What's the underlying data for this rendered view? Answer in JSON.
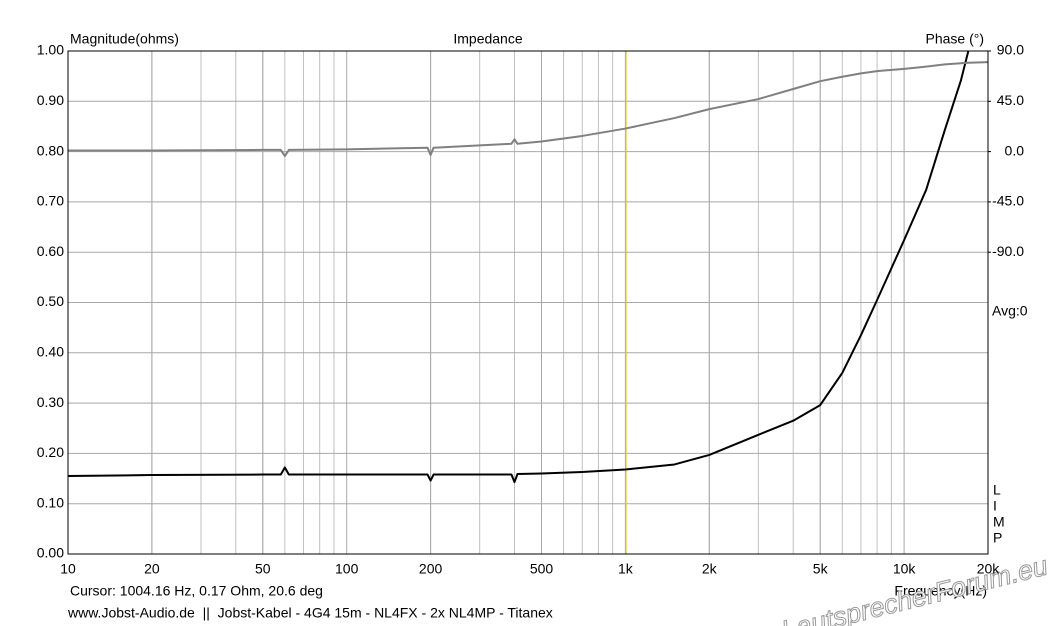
{
  "chart_data": {
    "type": "line",
    "title": "Impedance",
    "ylabel": "Magnitude(ohms)",
    "y2label": "Phase (°)",
    "xlabel": "Frequency(Hz)",
    "log_x": true,
    "grid": true,
    "xlim": [
      10,
      20000
    ],
    "xticks": [
      10,
      20,
      50,
      100,
      200,
      500,
      {
        "value": 1000,
        "label": "1k"
      },
      {
        "value": 2000,
        "label": "2k"
      },
      {
        "value": 5000,
        "label": "5k"
      },
      {
        "value": 10000,
        "label": "10k"
      },
      {
        "value": 20000,
        "label": "20k"
      }
    ],
    "ylim": [
      0,
      1
    ],
    "yticks": [
      {
        "value": 0,
        "label": "0.00"
      },
      {
        "value": 0.1,
        "label": "0.10"
      },
      {
        "value": 0.2,
        "label": "0.20"
      },
      {
        "value": 0.3,
        "label": "0.30"
      },
      {
        "value": 0.4,
        "label": "0.40"
      },
      {
        "value": 0.5,
        "label": "0.50"
      },
      {
        "value": 0.6,
        "label": "0.60"
      },
      {
        "value": 0.7,
        "label": "0.70"
      },
      {
        "value": 0.8,
        "label": "0.80"
      },
      {
        "value": 0.9,
        "label": "0.90"
      },
      {
        "value": 1,
        "label": "1.00"
      }
    ],
    "y2lim": [
      -360,
      90
    ],
    "y2ticks": [
      {
        "value": 90,
        "label": "90.0"
      },
      {
        "value": 45,
        "label": "45.0"
      },
      {
        "value": 0,
        "label": "0.0"
      },
      {
        "value": -45,
        "label": "-45.0"
      },
      {
        "value": -90,
        "label": "-90.0"
      }
    ],
    "x": [
      10,
      20,
      50,
      58,
      60,
      62,
      100,
      195,
      200,
      205,
      390,
      400,
      410,
      500,
      700,
      1000,
      1500,
      2000,
      3000,
      4000,
      5000,
      6000,
      7000,
      8000,
      10000,
      12000,
      14000,
      16000,
      17000,
      20000
    ],
    "series": [
      {
        "name": "Magnitude",
        "color": "#000000",
        "values": [
          0.155,
          0.157,
          0.158,
          0.158,
          0.172,
          0.158,
          0.158,
          0.158,
          0.146,
          0.158,
          0.158,
          0.143,
          0.159,
          0.16,
          0.163,
          0.168,
          0.178,
          0.197,
          0.237,
          0.265,
          0.296,
          0.36,
          0.435,
          0.505,
          0.624,
          0.724,
          0.843,
          0.942,
          1.0,
          null
        ]
      },
      {
        "name": "Phase",
        "color": "#808080",
        "axis": "y2",
        "values": [
          1,
          1,
          1.5,
          1.5,
          -4,
          1.5,
          2,
          3.5,
          -3,
          3.5,
          7,
          11,
          7,
          9,
          14,
          20.6,
          30,
          38,
          47,
          56,
          63,
          67,
          70,
          72,
          74,
          76,
          78,
          79,
          79.5,
          80
        ]
      }
    ],
    "cursor_x": 1004.16,
    "cursor_color": "#d8c800",
    "annotations": {
      "cursor": "Cursor: 1004.16 Hz, 0.17 Ohm, 20.6 deg",
      "source": "www.Jobst-Audio.de  ||  Jobst-Kabel - 4G4 15m - NL4FX - 2x NL4MP - Titanex",
      "avg": "Avg:0",
      "limp": [
        "L",
        "I",
        "M",
        "P"
      ],
      "watermark": "LautsprecherForum.eu"
    }
  }
}
